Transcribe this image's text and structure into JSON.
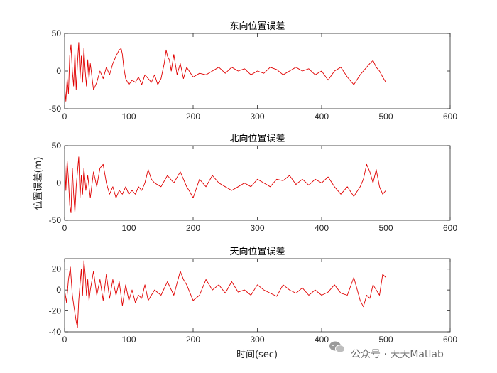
{
  "watermark": "公众号 · 天天Matlab",
  "wm_icon": "wechat-icon",
  "line_color": "#e00000",
  "chart_data": [
    {
      "type": "line",
      "title": "东向位置误差",
      "xlim": [
        0,
        600
      ],
      "ylim": [
        -50,
        50
      ],
      "xticks": [
        0,
        100,
        200,
        300,
        400,
        500,
        600
      ],
      "yticks": [
        -50,
        0,
        50
      ],
      "ylabel": "",
      "xlabel": "",
      "grid": false,
      "series": [
        {
          "x": [
            0,
            2,
            4,
            6,
            8,
            10,
            12,
            14,
            16,
            18,
            20,
            22,
            24,
            26,
            28,
            30,
            32,
            34,
            36,
            38,
            40,
            45,
            50,
            55,
            60,
            65,
            70,
            75,
            80,
            85,
            88,
            90,
            92,
            95,
            100,
            105,
            110,
            115,
            120,
            125,
            130,
            135,
            140,
            145,
            150,
            155,
            158,
            160,
            163,
            166,
            170,
            175,
            180,
            185,
            190,
            200,
            210,
            220,
            230,
            240,
            250,
            260,
            270,
            280,
            290,
            300,
            310,
            320,
            330,
            340,
            350,
            360,
            370,
            380,
            390,
            400,
            410,
            420,
            430,
            440,
            450,
            460,
            470,
            475,
            480,
            485,
            490,
            495,
            500
          ],
          "y": [
            -20,
            -40,
            -10,
            -30,
            20,
            35,
            0,
            -20,
            25,
            -25,
            10,
            38,
            -10,
            20,
            -15,
            30,
            0,
            -20,
            15,
            -10,
            10,
            -25,
            -15,
            0,
            -10,
            5,
            -5,
            10,
            20,
            28,
            30,
            22,
            5,
            -10,
            -18,
            -12,
            -15,
            -8,
            -18,
            -5,
            -10,
            -15,
            -5,
            -18,
            -10,
            10,
            28,
            20,
            15,
            0,
            22,
            -5,
            10,
            -10,
            5,
            -8,
            -3,
            -5,
            0,
            5,
            -3,
            5,
            0,
            3,
            -5,
            0,
            -3,
            5,
            2,
            -5,
            0,
            5,
            0,
            3,
            -5,
            0,
            -12,
            0,
            5,
            -8,
            -18,
            -5,
            5,
            10,
            14,
            5,
            0,
            -8,
            -15
          ]
        }
      ]
    },
    {
      "type": "line",
      "title": "北向位置误差",
      "xlim": [
        0,
        600
      ],
      "ylim": [
        -50,
        50
      ],
      "xticks": [
        0,
        100,
        200,
        300,
        400,
        500,
        600
      ],
      "yticks": [
        -50,
        0,
        50
      ],
      "ylabel": "位置误差(m)",
      "xlabel": "",
      "grid": false,
      "series": [
        {
          "x": [
            0,
            2,
            4,
            6,
            8,
            10,
            12,
            14,
            16,
            18,
            20,
            22,
            24,
            26,
            28,
            30,
            33,
            36,
            40,
            45,
            50,
            55,
            60,
            65,
            70,
            75,
            80,
            85,
            90,
            95,
            100,
            105,
            110,
            115,
            120,
            125,
            130,
            135,
            140,
            150,
            160,
            170,
            180,
            190,
            195,
            200,
            210,
            220,
            230,
            240,
            250,
            260,
            270,
            280,
            290,
            300,
            310,
            320,
            330,
            340,
            350,
            360,
            370,
            380,
            390,
            400,
            410,
            420,
            430,
            440,
            450,
            460,
            465,
            470,
            475,
            480,
            485,
            490,
            495,
            500
          ],
          "y": [
            40,
            -10,
            30,
            5,
            -30,
            -40,
            20,
            -15,
            -40,
            -5,
            15,
            35,
            -20,
            10,
            -15,
            20,
            -10,
            10,
            -20,
            15,
            -5,
            20,
            25,
            0,
            -15,
            -5,
            -20,
            -10,
            -15,
            -5,
            -15,
            -10,
            -15,
            -5,
            -10,
            0,
            18,
            5,
            0,
            -5,
            10,
            0,
            15,
            -5,
            -12,
            -20,
            5,
            -5,
            10,
            0,
            -5,
            -10,
            -5,
            0,
            -5,
            5,
            0,
            -5,
            5,
            3,
            10,
            -2,
            5,
            -3,
            5,
            0,
            8,
            -5,
            -15,
            -5,
            -18,
            -5,
            5,
            25,
            15,
            0,
            18,
            -5,
            -15,
            -10
          ]
        }
      ]
    },
    {
      "type": "line",
      "title": "天向位置误差",
      "xlim": [
        0,
        600
      ],
      "ylim": [
        -40,
        30
      ],
      "xticks": [
        0,
        100,
        200,
        300,
        400,
        500,
        600
      ],
      "yticks": [
        -40,
        -20,
        0,
        20
      ],
      "ylabel": "",
      "xlabel": "时间(sec)",
      "grid": false,
      "series": [
        {
          "x": [
            0,
            3,
            6,
            9,
            12,
            15,
            18,
            20,
            22,
            24,
            26,
            28,
            30,
            32,
            34,
            36,
            38,
            40,
            45,
            50,
            55,
            60,
            65,
            70,
            75,
            80,
            85,
            90,
            95,
            100,
            105,
            110,
            115,
            120,
            125,
            130,
            140,
            150,
            160,
            170,
            180,
            185,
            190,
            200,
            210,
            220,
            230,
            240,
            250,
            260,
            270,
            280,
            290,
            300,
            310,
            320,
            330,
            340,
            350,
            360,
            370,
            380,
            390,
            400,
            410,
            420,
            430,
            440,
            450,
            460,
            465,
            470,
            475,
            480,
            490,
            495,
            500
          ],
          "y": [
            0,
            -12,
            10,
            22,
            -5,
            -18,
            -30,
            -36,
            -10,
            5,
            20,
            -5,
            28,
            15,
            -5,
            10,
            -10,
            0,
            18,
            -5,
            10,
            -10,
            15,
            -8,
            10,
            -5,
            8,
            -15,
            5,
            -10,
            0,
            -12,
            -5,
            -8,
            5,
            -10,
            0,
            -5,
            8,
            -5,
            18,
            10,
            5,
            -10,
            -5,
            10,
            0,
            5,
            -3,
            8,
            -2,
            0,
            -5,
            5,
            0,
            -3,
            -6,
            5,
            0,
            -3,
            2,
            -5,
            0,
            -5,
            -2,
            5,
            -3,
            -5,
            12,
            -10,
            -16,
            -5,
            -8,
            5,
            -5,
            15,
            12
          ]
        }
      ]
    }
  ]
}
